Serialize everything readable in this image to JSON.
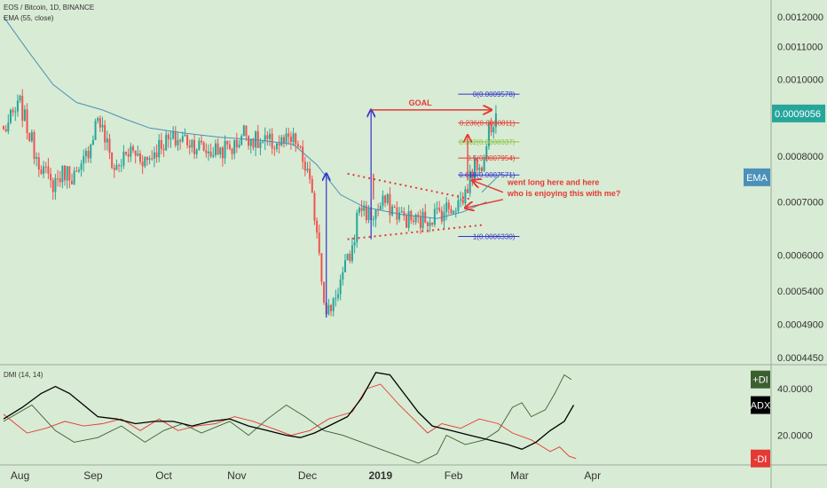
{
  "header": {
    "symbol": "EOS / Bitcoin, 1D, BINANCE",
    "indicator": "EMA (55, close)",
    "dmi": "DMI (14, 14)"
  },
  "colors": {
    "background": "#d8ebd4",
    "up": "#26a69a",
    "down": "#ef5350",
    "ema": "#4a90b8",
    "fib_blue": "#3333cc",
    "fib_red": "#e53935",
    "fib_green": "#8bc34a",
    "annotation": "#e53935",
    "dmi_plus": "#3b5f30",
    "dmi_minus": "#e53935",
    "adx": "#000000"
  },
  "chart_data": [
    {
      "type": "candlestick",
      "title": "EOS / Bitcoin, 1D, BINANCE",
      "x_labels": [
        "Aug",
        "Sep",
        "Oct",
        "Nov",
        "Dec",
        "2019",
        "Feb",
        "Mar",
        "Apr"
      ],
      "y_scale": "log",
      "ylim": [
        0.000437,
        0.00126
      ],
      "y_ticks": [
        "0.0012000",
        "0.0011000",
        "0.0010000",
        "0.0008000",
        "0.0007000",
        "0.0006000",
        "0.0005400",
        "0.0004900",
        "0.0004450"
      ],
      "last_price": "0.0009056",
      "series_label": "EMA",
      "anchors": [
        {
          "date": "Jul 25",
          "close": 0.00086
        },
        {
          "date": "Aug 1",
          "close": 0.00093
        },
        {
          "date": "Aug 7",
          "close": 0.000815
        },
        {
          "date": "Aug 14",
          "close": 0.000735
        },
        {
          "date": "Aug 20",
          "close": 0.000765
        },
        {
          "date": "Aug 26",
          "close": 0.000752
        },
        {
          "date": "Aug 31",
          "close": 0.000835
        },
        {
          "date": "Sep 3",
          "close": 0.0009
        },
        {
          "date": "Sep 10",
          "close": 0.00077
        },
        {
          "date": "Sep 17",
          "close": 0.000812
        },
        {
          "date": "Sep 24",
          "close": 0.00079
        },
        {
          "date": "Sep 30",
          "close": 0.000832
        },
        {
          "date": "Oct 10",
          "close": 0.000842
        },
        {
          "date": "Oct 20",
          "close": 0.00081
        },
        {
          "date": "Oct 31",
          "close": 0.000822
        },
        {
          "date": "Nov 4",
          "close": 0.00086
        },
        {
          "date": "Nov 10",
          "close": 0.00083
        },
        {
          "date": "Nov 18",
          "close": 0.00083
        },
        {
          "date": "Nov 26",
          "close": 0.000834
        },
        {
          "date": "Dec 1",
          "close": 0.00076
        },
        {
          "date": "Dec 5",
          "close": 0.00065
        },
        {
          "date": "Dec 9",
          "close": 0.0005
        },
        {
          "date": "Dec 15",
          "close": 0.000555
        },
        {
          "date": "Dec 20",
          "close": 0.00061
        },
        {
          "date": "Dec 23",
          "close": 0.000695
        },
        {
          "date": "Dec 28",
          "close": 0.00067
        },
        {
          "date": "Jan 3",
          "close": 0.0007
        },
        {
          "date": "Jan 10",
          "close": 0.00067
        },
        {
          "date": "Jan 17",
          "close": 0.00066
        },
        {
          "date": "Jan 24",
          "close": 0.000675
        },
        {
          "date": "Jan 31",
          "close": 0.00069
        },
        {
          "date": "Feb 5",
          "close": 0.000705
        },
        {
          "date": "Feb 8",
          "close": 0.00075
        },
        {
          "date": "Feb 11",
          "close": 0.000785
        },
        {
          "date": "Feb 14",
          "close": 0.000785
        },
        {
          "date": "Feb 16",
          "close": 0.00087
        },
        {
          "date": "Feb 19",
          "close": 0.000906
        }
      ],
      "ema": [
        {
          "date": "Jul 25",
          "value": 0.0012
        },
        {
          "date": "Aug 5",
          "value": 0.00108
        },
        {
          "date": "Aug 15",
          "value": 0.000985
        },
        {
          "date": "Aug 25",
          "value": 0.000935
        },
        {
          "date": "Sep 5",
          "value": 0.000915
        },
        {
          "date": "Sep 15",
          "value": 0.00089
        },
        {
          "date": "Sep 25",
          "value": 0.000868
        },
        {
          "date": "Oct 10",
          "value": 0.000855
        },
        {
          "date": "Oct 25",
          "value": 0.000845
        },
        {
          "date": "Nov 10",
          "value": 0.000838
        },
        {
          "date": "Nov 25",
          "value": 0.000828
        },
        {
          "date": "Dec 5",
          "value": 0.00078
        },
        {
          "date": "Dec 15",
          "value": 0.000715
        },
        {
          "date": "Dec 25",
          "value": 0.00069
        },
        {
          "date": "Jan 10",
          "value": 0.000675
        },
        {
          "date": "Jan 25",
          "value": 0.000667
        },
        {
          "date": "Feb 5",
          "value": 0.00068
        },
        {
          "date": "Feb 15",
          "value": 0.0007
        }
      ],
      "fibonacci": [
        {
          "label": "0(0.0009578)",
          "value": 0.0009578,
          "color": "blue"
        },
        {
          "label": "0.236(0.0008811)",
          "value": 0.0008811,
          "color": "red"
        },
        {
          "label": "0.382(0.0008337)",
          "value": 0.0008337,
          "color": "green"
        },
        {
          "label": "0.5(0.0007954)",
          "value": 0.0007954,
          "color": "red"
        },
        {
          "label": "0.618(0.0007571)",
          "value": 0.0007571,
          "color": "blue"
        },
        {
          "label": "1(0.0006330)",
          "value": 0.000633,
          "color": "blue"
        }
      ],
      "annotations": [
        "GOAL",
        "went long here and here",
        "who is enjoying this with me?"
      ]
    },
    {
      "type": "line",
      "title": "DMI (14, 14)",
      "y_ticks": [
        "40.0000",
        "20.0000"
      ],
      "ylim": [
        8,
        50
      ],
      "series": [
        {
          "name": "+DI",
          "current": "+DI",
          "values": [
            [
              0,
              26
            ],
            [
              12,
              33
            ],
            [
              22,
              22
            ],
            [
              30,
              17
            ],
            [
              40,
              19
            ],
            [
              50,
              24
            ],
            [
              60,
              17
            ],
            [
              68,
              22
            ],
            [
              76,
              25
            ],
            [
              84,
              21
            ],
            [
              96,
              26
            ],
            [
              104,
              20
            ],
            [
              112,
              27
            ],
            [
              120,
              33
            ],
            [
              128,
              28
            ],
            [
              136,
              22
            ],
            [
              144,
              20
            ],
            [
              152,
              17
            ],
            [
              160,
              14
            ],
            [
              168,
              11
            ],
            [
              176,
              8
            ],
            [
              184,
              12
            ],
            [
              188,
              20
            ],
            [
              196,
              16
            ],
            [
              204,
              18
            ],
            [
              210,
              22
            ],
            [
              216,
              32
            ],
            [
              220,
              34
            ],
            [
              224,
              28
            ],
            [
              230,
              31
            ],
            [
              234,
              38
            ],
            [
              238,
              46
            ],
            [
              241,
              44
            ]
          ]
        },
        {
          "name": "-DI",
          "current": "-DI",
          "values": [
            [
              0,
              29
            ],
            [
              10,
              21
            ],
            [
              18,
              23
            ],
            [
              26,
              26
            ],
            [
              34,
              24
            ],
            [
              42,
              25
            ],
            [
              50,
              27
            ],
            [
              58,
              22
            ],
            [
              66,
              27
            ],
            [
              74,
              22
            ],
            [
              82,
              24
            ],
            [
              90,
              25
            ],
            [
              98,
              28
            ],
            [
              106,
              26
            ],
            [
              114,
              23
            ],
            [
              122,
              20
            ],
            [
              130,
              22
            ],
            [
              138,
              27
            ],
            [
              148,
              30
            ],
            [
              154,
              40
            ],
            [
              160,
              42
            ],
            [
              168,
              33
            ],
            [
              174,
              27
            ],
            [
              180,
              21
            ],
            [
              186,
              25
            ],
            [
              194,
              23
            ],
            [
              202,
              27
            ],
            [
              210,
              25
            ],
            [
              216,
              21
            ],
            [
              224,
              18
            ],
            [
              232,
              13
            ],
            [
              236,
              15
            ],
            [
              240,
              11
            ],
            [
              243,
              10
            ]
          ]
        },
        {
          "name": "ADX",
          "current": "ADX",
          "values": [
            [
              0,
              27
            ],
            [
              8,
              32
            ],
            [
              16,
              38
            ],
            [
              22,
              41
            ],
            [
              28,
              38
            ],
            [
              34,
              33
            ],
            [
              40,
              28
            ],
            [
              48,
              27
            ],
            [
              56,
              25
            ],
            [
              64,
              26
            ],
            [
              72,
              26
            ],
            [
              80,
              24
            ],
            [
              88,
              26
            ],
            [
              96,
              27
            ],
            [
              104,
              24
            ],
            [
              112,
              22
            ],
            [
              120,
              20
            ],
            [
              126,
              19
            ],
            [
              132,
              21
            ],
            [
              140,
              25
            ],
            [
              146,
              28
            ],
            [
              152,
              36
            ],
            [
              158,
              47
            ],
            [
              164,
              46
            ],
            [
              170,
              38
            ],
            [
              176,
              30
            ],
            [
              182,
              24
            ],
            [
              190,
              22
            ],
            [
              198,
              20
            ],
            [
              206,
              18
            ],
            [
              214,
              16
            ],
            [
              220,
              14
            ],
            [
              226,
              17
            ],
            [
              232,
              22
            ],
            [
              238,
              26
            ],
            [
              242,
              33
            ]
          ]
        }
      ]
    }
  ]
}
